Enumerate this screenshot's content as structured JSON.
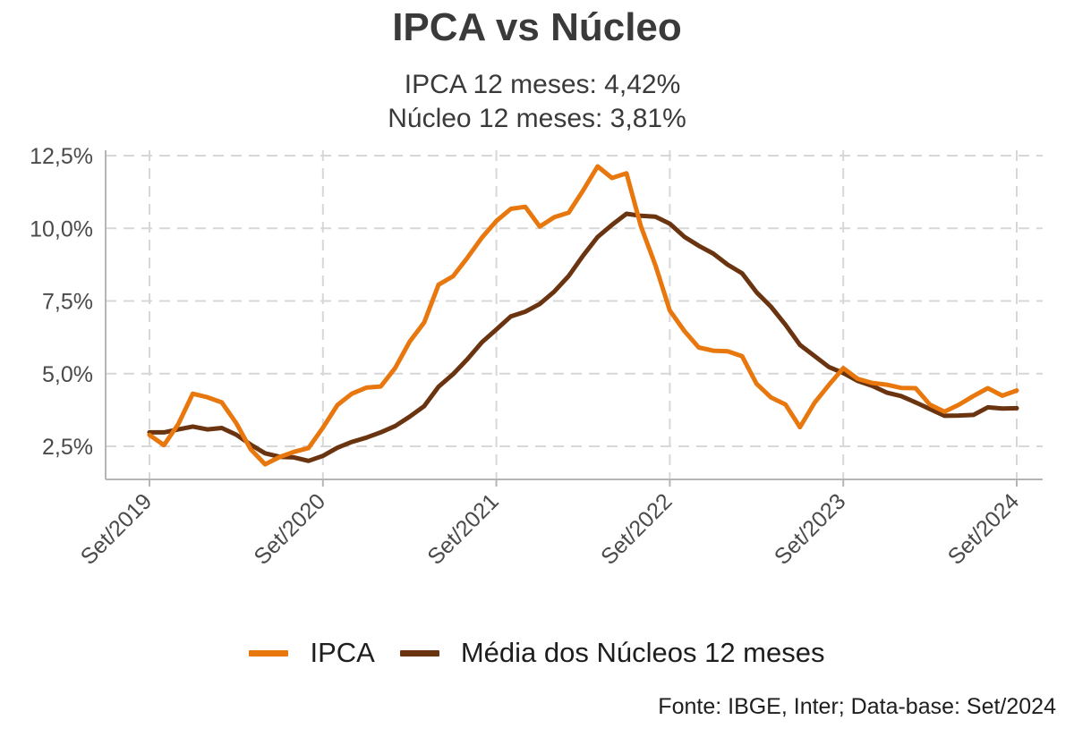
{
  "title": "IPCA vs Núcleo",
  "subtitle_lines": [
    "IPCA 12 meses: 4,42%",
    "Núcleo 12 meses: 3,81%"
  ],
  "source": "Fonte: IBGE, Inter; Data-base: Set/2024",
  "colors": {
    "ipca": "#e8770e",
    "nucleo": "#6b3410",
    "grid": "#d7d7d7",
    "axis": "#b5b5b5"
  },
  "chart_data": {
    "type": "line",
    "title": "IPCA vs Núcleo",
    "xlabel": "",
    "ylabel": "",
    "ylim": [
      1.5,
      12.6
    ],
    "grid": true,
    "legend_position": "bottom",
    "x_ticks": [
      "Set/2019",
      "Set/2020",
      "Set/2021",
      "Set/2022",
      "Set/2023",
      "Set/2024"
    ],
    "y_ticks": [
      {
        "value": 2.5,
        "label": "2,5%"
      },
      {
        "value": 5.0,
        "label": "5,0%"
      },
      {
        "value": 7.5,
        "label": "7,5%"
      },
      {
        "value": 10.0,
        "label": "10,0%"
      },
      {
        "value": 12.5,
        "label": "12,5%"
      }
    ],
    "x": [
      "2019-09",
      "2019-10",
      "2019-11",
      "2019-12",
      "2020-01",
      "2020-02",
      "2020-03",
      "2020-04",
      "2020-05",
      "2020-06",
      "2020-07",
      "2020-08",
      "2020-09",
      "2020-10",
      "2020-11",
      "2020-12",
      "2021-01",
      "2021-02",
      "2021-03",
      "2021-04",
      "2021-05",
      "2021-06",
      "2021-07",
      "2021-08",
      "2021-09",
      "2021-10",
      "2021-11",
      "2021-12",
      "2022-01",
      "2022-02",
      "2022-03",
      "2022-04",
      "2022-05",
      "2022-06",
      "2022-07",
      "2022-08",
      "2022-09",
      "2022-10",
      "2022-11",
      "2022-12",
      "2023-01",
      "2023-02",
      "2023-03",
      "2023-04",
      "2023-05",
      "2023-06",
      "2023-07",
      "2023-08",
      "2023-09",
      "2023-10",
      "2023-11",
      "2023-12",
      "2024-01",
      "2024-02",
      "2024-03",
      "2024-04",
      "2024-05",
      "2024-06",
      "2024-07",
      "2024-08",
      "2024-09"
    ],
    "series": [
      {
        "name": "IPCA",
        "values": [
          2.89,
          2.54,
          3.27,
          4.31,
          4.19,
          4.01,
          3.3,
          2.4,
          1.88,
          2.13,
          2.31,
          2.44,
          3.14,
          3.92,
          4.31,
          4.52,
          4.56,
          5.2,
          6.1,
          6.76,
          8.06,
          8.35,
          8.99,
          9.68,
          10.25,
          10.67,
          10.74,
          10.06,
          10.38,
          10.54,
          11.3,
          12.13,
          11.73,
          11.89,
          10.07,
          8.73,
          7.17,
          6.47,
          5.9,
          5.79,
          5.77,
          5.6,
          4.65,
          4.18,
          3.94,
          3.16,
          3.99,
          4.61,
          5.19,
          4.82,
          4.68,
          4.62,
          4.51,
          4.5,
          3.93,
          3.69,
          3.93,
          4.23,
          4.5,
          4.24,
          4.42
        ]
      },
      {
        "name": "Média dos Núcleos 12 meses",
        "values": [
          2.98,
          2.98,
          3.08,
          3.18,
          3.08,
          3.13,
          2.9,
          2.56,
          2.26,
          2.14,
          2.12,
          2.0,
          2.17,
          2.45,
          2.65,
          2.8,
          2.98,
          3.2,
          3.52,
          3.88,
          4.55,
          4.98,
          5.5,
          6.08,
          6.52,
          6.97,
          7.13,
          7.4,
          7.82,
          8.36,
          9.06,
          9.7,
          10.12,
          10.5,
          10.43,
          10.4,
          10.16,
          9.71,
          9.4,
          9.13,
          8.75,
          8.45,
          7.8,
          7.3,
          6.68,
          5.99,
          5.61,
          5.23,
          5.02,
          4.75,
          4.58,
          4.35,
          4.23,
          4.01,
          3.78,
          3.55,
          3.56,
          3.58,
          3.84,
          3.8,
          3.81
        ]
      }
    ]
  }
}
